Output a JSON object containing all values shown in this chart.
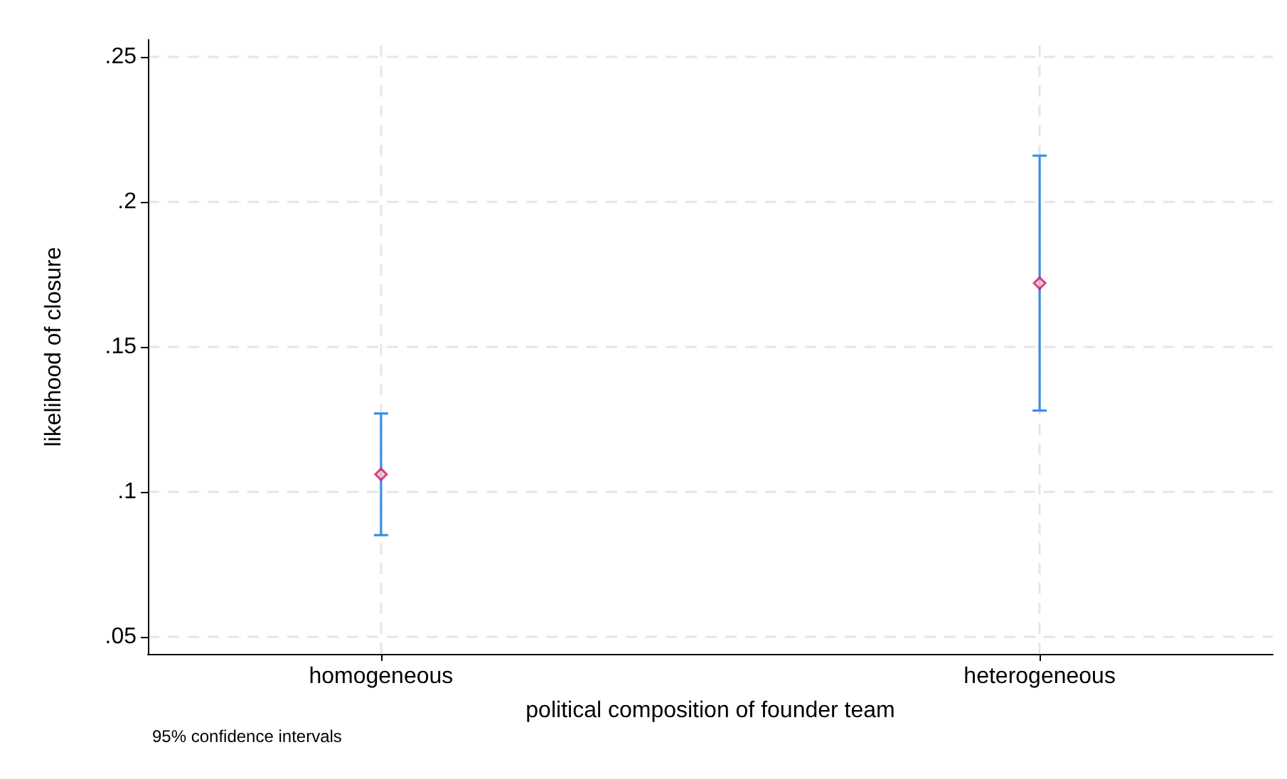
{
  "chart_data": {
    "type": "scatter",
    "xlabel": "political composition of founder team",
    "ylabel": "likelihood of closure",
    "categories": [
      "homogeneous",
      "heterogeneous"
    ],
    "series": [
      {
        "color": "#d01c5b",
        "values": [
          0.106,
          0.172
        ],
        "errors": [
          [
            0.085,
            0.127
          ],
          [
            0.128,
            0.216
          ]
        ]
      }
    ],
    "ylim": [
      0.044,
      0.256
    ],
    "yticks": [
      {
        "value": 0.05,
        "label": ".05"
      },
      {
        "value": 0.1,
        "label": ".1"
      },
      {
        "value": 0.15,
        "label": ".15"
      },
      {
        "value": 0.2,
        "label": ".2"
      },
      {
        "value": 0.25,
        "label": ".25"
      }
    ],
    "grid": true,
    "marker": "diamond",
    "annotations": [
      "95% confidence intervals"
    ]
  }
}
